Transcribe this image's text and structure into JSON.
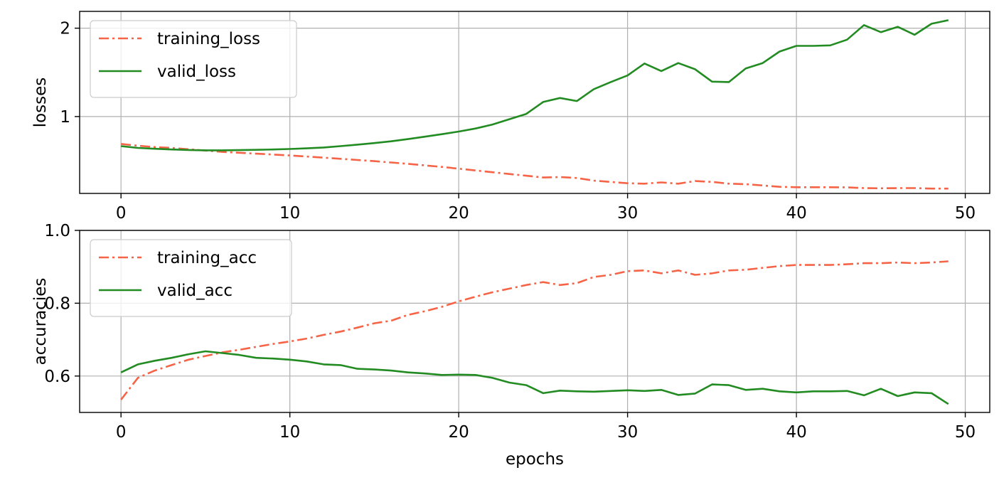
{
  "chart_data": [
    {
      "type": "line",
      "title": "",
      "xlabel": "",
      "ylabel": "losses",
      "xlim": [
        -2.45,
        51.45
      ],
      "ylim": [
        0.13,
        2.19
      ],
      "xticks": [
        0,
        10,
        20,
        30,
        40,
        50
      ],
      "yticks": [
        1,
        2
      ],
      "xtick_labels": [
        "0",
        "10",
        "20",
        "30",
        "40",
        "50"
      ],
      "ytick_labels": [
        "1",
        "2"
      ],
      "grid": true,
      "legend_position": "top-left",
      "x": [
        0,
        1,
        2,
        3,
        4,
        5,
        6,
        7,
        8,
        9,
        10,
        11,
        12,
        13,
        14,
        15,
        16,
        17,
        18,
        19,
        20,
        21,
        22,
        23,
        24,
        25,
        26,
        27,
        28,
        29,
        30,
        31,
        32,
        33,
        34,
        35,
        36,
        37,
        38,
        39,
        40,
        41,
        42,
        43,
        44,
        45,
        46,
        47,
        48,
        49
      ],
      "series": [
        {
          "name": "training_loss",
          "color": "#f56447",
          "style": "dashdot",
          "values": [
            0.69,
            0.67,
            0.655,
            0.645,
            0.63,
            0.615,
            0.6,
            0.59,
            0.58,
            0.57,
            0.56,
            0.548,
            0.535,
            0.522,
            0.508,
            0.495,
            0.48,
            0.465,
            0.447,
            0.43,
            0.41,
            0.39,
            0.37,
            0.35,
            0.33,
            0.31,
            0.315,
            0.305,
            0.275,
            0.26,
            0.245,
            0.24,
            0.255,
            0.24,
            0.27,
            0.26,
            0.24,
            0.235,
            0.22,
            0.205,
            0.2,
            0.2,
            0.2,
            0.198,
            0.19,
            0.188,
            0.19,
            0.19,
            0.185,
            0.185
          ]
        },
        {
          "name": "valid_loss",
          "color": "#228b22",
          "style": "solid",
          "values": [
            0.665,
            0.645,
            0.635,
            0.627,
            0.622,
            0.618,
            0.618,
            0.62,
            0.623,
            0.627,
            0.633,
            0.64,
            0.65,
            0.665,
            0.682,
            0.7,
            0.72,
            0.745,
            0.772,
            0.8,
            0.83,
            0.865,
            0.91,
            0.97,
            1.03,
            1.165,
            1.21,
            1.175,
            1.31,
            1.39,
            1.465,
            1.6,
            1.515,
            1.605,
            1.535,
            1.395,
            1.39,
            1.545,
            1.605,
            1.735,
            1.8,
            1.8,
            1.805,
            1.87,
            2.035,
            1.955,
            2.015,
            1.925,
            2.05,
            2.09
          ]
        }
      ]
    },
    {
      "type": "line",
      "title": "",
      "xlabel": "epochs",
      "ylabel": "accuracies",
      "xlim": [
        -2.45,
        51.45
      ],
      "ylim": [
        0.5,
        1.0
      ],
      "xticks": [
        0,
        10,
        20,
        30,
        40,
        50
      ],
      "yticks": [
        0.6,
        0.8,
        1.0
      ],
      "xtick_labels": [
        "0",
        "10",
        "20",
        "30",
        "40",
        "50"
      ],
      "ytick_labels": [
        "0.6",
        "0.8",
        "1.0"
      ],
      "grid": true,
      "legend_position": "top-left",
      "x": [
        0,
        1,
        2,
        3,
        4,
        5,
        6,
        7,
        8,
        9,
        10,
        11,
        12,
        13,
        14,
        15,
        16,
        17,
        18,
        19,
        20,
        21,
        22,
        23,
        24,
        25,
        26,
        27,
        28,
        29,
        30,
        31,
        32,
        33,
        34,
        35,
        36,
        37,
        38,
        39,
        40,
        41,
        42,
        43,
        44,
        45,
        46,
        47,
        48,
        49
      ],
      "series": [
        {
          "name": "training_acc",
          "color": "#f56447",
          "style": "dashdot",
          "values": [
            0.535,
            0.595,
            0.615,
            0.63,
            0.645,
            0.655,
            0.665,
            0.672,
            0.68,
            0.688,
            0.695,
            0.703,
            0.713,
            0.722,
            0.733,
            0.745,
            0.752,
            0.768,
            0.778,
            0.79,
            0.805,
            0.818,
            0.83,
            0.84,
            0.85,
            0.858,
            0.85,
            0.855,
            0.872,
            0.878,
            0.888,
            0.89,
            0.882,
            0.89,
            0.878,
            0.882,
            0.89,
            0.892,
            0.897,
            0.902,
            0.905,
            0.905,
            0.905,
            0.907,
            0.91,
            0.91,
            0.912,
            0.91,
            0.912,
            0.915
          ]
        },
        {
          "name": "valid_acc",
          "color": "#228b22",
          "style": "solid",
          "values": [
            0.61,
            0.632,
            0.642,
            0.65,
            0.66,
            0.668,
            0.663,
            0.658,
            0.65,
            0.648,
            0.645,
            0.64,
            0.632,
            0.63,
            0.62,
            0.618,
            0.615,
            0.61,
            0.607,
            0.603,
            0.604,
            0.603,
            0.595,
            0.582,
            0.575,
            0.553,
            0.56,
            0.558,
            0.557,
            0.559,
            0.561,
            0.559,
            0.562,
            0.548,
            0.552,
            0.577,
            0.575,
            0.562,
            0.565,
            0.558,
            0.555,
            0.558,
            0.558,
            0.559,
            0.547,
            0.565,
            0.545,
            0.555,
            0.553,
            0.523
          ]
        }
      ]
    }
  ]
}
